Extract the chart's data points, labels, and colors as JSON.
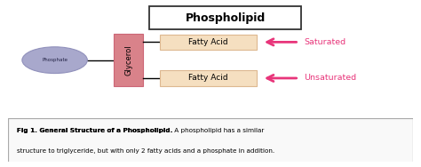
{
  "title": "Phospholipid",
  "background_color": "#ffffff",
  "fig_caption_bold": "Fig 1. General Structure of a Phospholipid.",
  "fig_caption_normal": " A phospholipid has a similar structure to triglyceride, but with only 2 fatty acids and a phosphate in addition.",
  "phosphate_label": "Phosphate",
  "glycerol_label": "Glycerol",
  "fatty_acid_label": "Fatty Acid",
  "saturated_label": "Saturated",
  "unsaturated_label": "Unsaturated",
  "phosphate_color": "#a8a8cc",
  "phosphate_edge": "#9090bb",
  "glycerol_color": "#d9828a",
  "glycerol_edge": "#cc6677",
  "fatty_acid_color": "#f5dfc0",
  "fatty_acid_edge": "#ddb890",
  "arrow_color": "#e8357a",
  "label_color": "#e8357a",
  "title_box_edge": "#333333",
  "caption_edge": "#aaaaaa",
  "caption_bg": "#f9f9f9"
}
